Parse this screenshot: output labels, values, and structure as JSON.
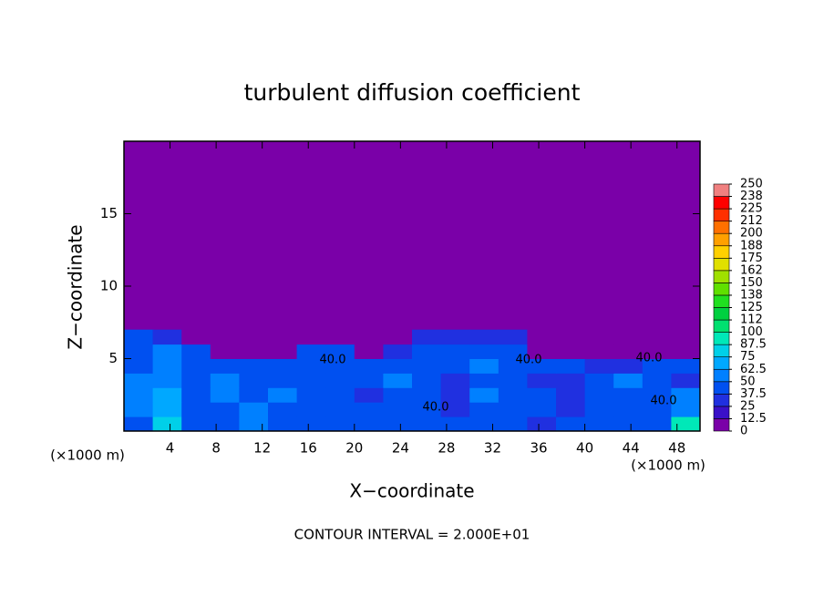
{
  "chart_data": {
    "type": "contour",
    "title": "turbulent diffusion coefficient",
    "xlabel": "X−coordinate",
    "ylabel": "Z−coordinate",
    "x_unit_left": "(×1000 m)",
    "x_unit_right": "(×1000 m)",
    "footnote": "CONTOUR INTERVAL = 2.000E+01",
    "contour_labels": [
      "40.0",
      "40.0",
      "40.0",
      "40.0",
      "40.0"
    ],
    "xlim": [
      0,
      50
    ],
    "ylim": [
      0,
      20
    ],
    "xticks": [
      4,
      8,
      12,
      16,
      20,
      24,
      28,
      32,
      36,
      40,
      44,
      48
    ],
    "yticks": [
      5,
      10,
      15
    ],
    "grid_x": [
      1.25,
      3.75,
      6.25,
      8.75,
      11.25,
      13.75,
      16.25,
      18.75,
      21.25,
      23.75,
      26.25,
      28.75,
      31.25,
      33.75,
      36.25,
      38.75,
      41.25,
      43.75,
      46.25,
      48.75
    ],
    "grid_z": [
      0.5,
      1.5,
      2.5,
      3.5,
      4.5,
      5.5,
      6.5
    ],
    "z": [
      [
        45,
        80,
        40,
        45,
        50,
        40,
        40,
        40,
        45,
        45,
        40,
        40,
        40,
        40,
        35,
        40,
        40,
        40,
        45,
        90
      ],
      [
        55,
        65,
        40,
        45,
        50,
        45,
        40,
        45,
        40,
        45,
        45,
        30,
        45,
        40,
        40,
        35,
        40,
        45,
        45,
        60
      ],
      [
        60,
        70,
        45,
        55,
        45,
        50,
        45,
        40,
        35,
        45,
        40,
        30,
        50,
        40,
        40,
        35,
        45,
        45,
        40,
        55
      ],
      [
        55,
        60,
        40,
        50,
        45,
        45,
        40,
        40,
        40,
        50,
        45,
        35,
        45,
        40,
        35,
        35,
        40,
        50,
        40,
        35
      ],
      [
        45,
        55,
        45,
        45,
        40,
        45,
        45,
        40,
        40,
        40,
        45,
        45,
        50,
        45,
        40,
        40,
        30,
        35,
        45,
        45
      ],
      [
        45,
        50,
        40,
        5,
        5,
        5,
        40,
        45,
        5,
        35,
        40,
        40,
        45,
        40,
        5,
        5,
        5,
        5,
        5,
        5
      ],
      [
        40,
        30,
        5,
        5,
        5,
        5,
        5,
        5,
        5,
        5,
        30,
        35,
        35,
        30,
        5,
        5,
        5,
        5,
        5,
        5
      ]
    ],
    "colorbar": {
      "levels": [
        0,
        12.5,
        25,
        37.5,
        50,
        62.5,
        75,
        87.5,
        100,
        {
          "value": 112.5,
          "label": "112"
        },
        125,
        {
          "value": 137.5,
          "label": "138"
        },
        150,
        {
          "value": 162.5,
          "label": "162"
        },
        175,
        {
          "value": 187.5,
          "label": "188"
        },
        200,
        {
          "value": 212.5,
          "label": "212"
        },
        225,
        {
          "value": 237.5,
          "label": "238"
        },
        250
      ],
      "colors": [
        "#7a00a8",
        "#3a10c8",
        "#2030e0",
        "#0050f0",
        "#0080ff",
        "#00a8ff",
        "#00d0e8",
        "#00e8b8",
        "#00e070",
        "#00d040",
        "#20e020",
        "#60e000",
        "#a0e000",
        "#e0e000",
        "#ffd000",
        "#ffa000",
        "#ff7000",
        "#ff3000",
        "#ff0000",
        "#f08080"
      ]
    }
  }
}
